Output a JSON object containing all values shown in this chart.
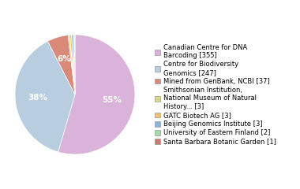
{
  "labels": [
    "Canadian Centre for DNA\nBarcoding [355]",
    "Centre for Biodiversity\nGenomics [247]",
    "Mined from GenBank, NCBI [37]",
    "Smithsonian Institution,\nNational Museum of Natural\nHistory... [3]",
    "GATC Biotech AG [3]",
    "Beijing Genomics Institute [3]",
    "University of Eastern Finland [2]",
    "Santa Barbara Botanic Garden [1]"
  ],
  "values": [
    355,
    247,
    37,
    3,
    3,
    3,
    2,
    1
  ],
  "colors": [
    "#d9b3d9",
    "#b8cde0",
    "#d9897a",
    "#d4d98a",
    "#f5c06e",
    "#8ab4d9",
    "#a8d9a8",
    "#c97a6e"
  ],
  "figsize": [
    3.8,
    2.4
  ],
  "dpi": 100,
  "legend_fontsize": 6.0,
  "pct_fontsize": 7.5,
  "pct_threshold": 4.0
}
